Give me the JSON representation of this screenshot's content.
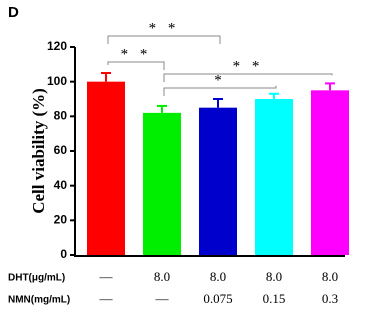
{
  "chart_data": {
    "type": "bar",
    "panel_label": "D",
    "y_label": "Cell viability (%)",
    "values": [
      100,
      82,
      85,
      90,
      95
    ],
    "errors": [
      5,
      4,
      5,
      3,
      4
    ],
    "colors": [
      "#ff0000",
      "#00ee00",
      "#0000cc",
      "#00ffff",
      "#ff00ff"
    ],
    "ylim": [
      0,
      120
    ],
    "yticks": [
      0,
      20,
      40,
      60,
      80,
      100,
      120
    ],
    "significance": [
      {
        "between": [
          0,
          2
        ],
        "text": "* *"
      },
      {
        "between": [
          0,
          1
        ],
        "text": "* *"
      },
      {
        "between": [
          1,
          4
        ],
        "text": "* *"
      },
      {
        "between": [
          1,
          3
        ],
        "text": "*"
      }
    ],
    "conditions": [
      {
        "label": "DHT(μg/mL)",
        "values": [
          "—",
          "8.0",
          "8.0",
          "8.0",
          "8.0"
        ]
      },
      {
        "label": "NMN(mg/mL)",
        "values": [
          "—",
          "—",
          "0.075",
          "0.15",
          "0.3"
        ]
      }
    ]
  }
}
